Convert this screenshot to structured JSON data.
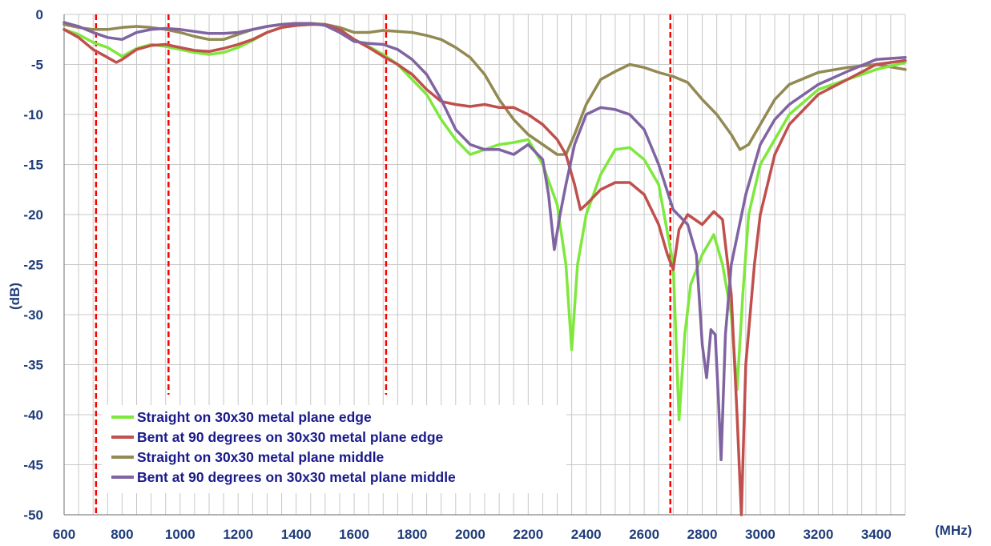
{
  "chart_data": {
    "type": "line",
    "xlabel": "(MHz)",
    "ylabel": "(dB)",
    "xlim": [
      600,
      3500
    ],
    "ylim": [
      -50,
      0
    ],
    "x_ticks": [
      600,
      800,
      1000,
      1200,
      1400,
      1600,
      1800,
      2000,
      2200,
      2400,
      2600,
      2800,
      3000,
      3200,
      3400
    ],
    "y_ticks": [
      0,
      -5,
      -10,
      -15,
      -20,
      -25,
      -30,
      -35,
      -40,
      -45,
      -50
    ],
    "grid": true,
    "legend_position": "bottom-left",
    "markers": [
      {
        "x": 710,
        "y_top": 0,
        "y_bottom": -50,
        "color": "#ff0000"
      },
      {
        "x": 960,
        "y_top": 0,
        "y_bottom": -38,
        "color": "#ff0000"
      },
      {
        "x": 1710,
        "y_top": 0,
        "y_bottom": -38,
        "color": "#ff0000"
      },
      {
        "x": 2690,
        "y_top": 0,
        "y_bottom": -50,
        "color": "#ff0000"
      }
    ],
    "series": [
      {
        "name": "Straight on 30x30 metal plane edge",
        "color": "#7ee83c",
        "points": [
          [
            600,
            -1.5
          ],
          [
            650,
            -2
          ],
          [
            700,
            -2.8
          ],
          [
            750,
            -3.3
          ],
          [
            800,
            -4.2
          ],
          [
            850,
            -3.4
          ],
          [
            900,
            -3
          ],
          [
            950,
            -3.2
          ],
          [
            1000,
            -3.5
          ],
          [
            1050,
            -3.8
          ],
          [
            1100,
            -4
          ],
          [
            1150,
            -3.8
          ],
          [
            1200,
            -3.3
          ],
          [
            1250,
            -2.6
          ],
          [
            1300,
            -1.8
          ],
          [
            1350,
            -1.3
          ],
          [
            1400,
            -1.1
          ],
          [
            1450,
            -1
          ],
          [
            1500,
            -1
          ],
          [
            1550,
            -1.5
          ],
          [
            1600,
            -2.5
          ],
          [
            1650,
            -3.2
          ],
          [
            1700,
            -4
          ],
          [
            1750,
            -5
          ],
          [
            1800,
            -6.5
          ],
          [
            1850,
            -8
          ],
          [
            1900,
            -10.5
          ],
          [
            1950,
            -12.5
          ],
          [
            2000,
            -14
          ],
          [
            2050,
            -13.5
          ],
          [
            2100,
            -13
          ],
          [
            2150,
            -12.8
          ],
          [
            2200,
            -12.5
          ],
          [
            2250,
            -15
          ],
          [
            2300,
            -19
          ],
          [
            2330,
            -25
          ],
          [
            2350,
            -33.5
          ],
          [
            2370,
            -25
          ],
          [
            2400,
            -20
          ],
          [
            2450,
            -16
          ],
          [
            2500,
            -13.5
          ],
          [
            2550,
            -13.3
          ],
          [
            2600,
            -14.5
          ],
          [
            2650,
            -17
          ],
          [
            2700,
            -25
          ],
          [
            2720,
            -40.5
          ],
          [
            2740,
            -32
          ],
          [
            2760,
            -27
          ],
          [
            2800,
            -24
          ],
          [
            2840,
            -22
          ],
          [
            2870,
            -25
          ],
          [
            2900,
            -30
          ],
          [
            2920,
            -37.5
          ],
          [
            2940,
            -28
          ],
          [
            2960,
            -20
          ],
          [
            3000,
            -15
          ],
          [
            3050,
            -12.5
          ],
          [
            3100,
            -10
          ],
          [
            3200,
            -7.5
          ],
          [
            3300,
            -6.5
          ],
          [
            3400,
            -5.5
          ],
          [
            3500,
            -4.8
          ]
        ]
      },
      {
        "name": "Bent at 90 degrees on 30x30 metal plane edge",
        "color": "#c0504d",
        "points": [
          [
            600,
            -1.5
          ],
          [
            650,
            -2.3
          ],
          [
            700,
            -3.5
          ],
          [
            750,
            -4.3
          ],
          [
            780,
            -4.8
          ],
          [
            800,
            -4.5
          ],
          [
            850,
            -3.5
          ],
          [
            900,
            -3.1
          ],
          [
            950,
            -3
          ],
          [
            1000,
            -3.3
          ],
          [
            1050,
            -3.6
          ],
          [
            1100,
            -3.7
          ],
          [
            1150,
            -3.4
          ],
          [
            1200,
            -3
          ],
          [
            1250,
            -2.5
          ],
          [
            1300,
            -1.8
          ],
          [
            1350,
            -1.3
          ],
          [
            1400,
            -1.1
          ],
          [
            1450,
            -1
          ],
          [
            1500,
            -1
          ],
          [
            1550,
            -1.5
          ],
          [
            1600,
            -2.5
          ],
          [
            1650,
            -3.3
          ],
          [
            1700,
            -4.2
          ],
          [
            1750,
            -5
          ],
          [
            1800,
            -6
          ],
          [
            1850,
            -7.5
          ],
          [
            1900,
            -8.7
          ],
          [
            1950,
            -9
          ],
          [
            2000,
            -9.2
          ],
          [
            2050,
            -9
          ],
          [
            2100,
            -9.3
          ],
          [
            2150,
            -9.3
          ],
          [
            2200,
            -10
          ],
          [
            2250,
            -11
          ],
          [
            2300,
            -12.5
          ],
          [
            2330,
            -14
          ],
          [
            2360,
            -17
          ],
          [
            2380,
            -19.5
          ],
          [
            2400,
            -19
          ],
          [
            2450,
            -17.5
          ],
          [
            2500,
            -16.8
          ],
          [
            2550,
            -16.8
          ],
          [
            2600,
            -18
          ],
          [
            2650,
            -21
          ],
          [
            2680,
            -24
          ],
          [
            2700,
            -25.5
          ],
          [
            2720,
            -21.5
          ],
          [
            2750,
            -20
          ],
          [
            2800,
            -21
          ],
          [
            2840,
            -19.7
          ],
          [
            2870,
            -20.5
          ],
          [
            2900,
            -28
          ],
          [
            2920,
            -40
          ],
          [
            2935,
            -50
          ],
          [
            2950,
            -35
          ],
          [
            2980,
            -25
          ],
          [
            3000,
            -20
          ],
          [
            3050,
            -14
          ],
          [
            3100,
            -11
          ],
          [
            3200,
            -8
          ],
          [
            3300,
            -6.5
          ],
          [
            3400,
            -5
          ],
          [
            3500,
            -4.6
          ]
        ]
      },
      {
        "name": "Straight on 30x30 metal plane middle",
        "color": "#938953",
        "points": [
          [
            600,
            -1
          ],
          [
            650,
            -1.3
          ],
          [
            700,
            -1.5
          ],
          [
            750,
            -1.5
          ],
          [
            800,
            -1.3
          ],
          [
            850,
            -1.2
          ],
          [
            900,
            -1.3
          ],
          [
            950,
            -1.5
          ],
          [
            1000,
            -1.8
          ],
          [
            1050,
            -2.2
          ],
          [
            1100,
            -2.5
          ],
          [
            1150,
            -2.5
          ],
          [
            1200,
            -2
          ],
          [
            1250,
            -1.5
          ],
          [
            1300,
            -1.2
          ],
          [
            1350,
            -1
          ],
          [
            1400,
            -0.9
          ],
          [
            1450,
            -0.9
          ],
          [
            1500,
            -1
          ],
          [
            1550,
            -1.3
          ],
          [
            1600,
            -1.8
          ],
          [
            1650,
            -1.8
          ],
          [
            1700,
            -1.6
          ],
          [
            1750,
            -1.7
          ],
          [
            1800,
            -1.8
          ],
          [
            1850,
            -2.1
          ],
          [
            1900,
            -2.5
          ],
          [
            1950,
            -3.3
          ],
          [
            2000,
            -4.3
          ],
          [
            2050,
            -6
          ],
          [
            2100,
            -8.5
          ],
          [
            2150,
            -10.5
          ],
          [
            2200,
            -12
          ],
          [
            2250,
            -13
          ],
          [
            2300,
            -14
          ],
          [
            2330,
            -14
          ],
          [
            2360,
            -12
          ],
          [
            2400,
            -9
          ],
          [
            2450,
            -6.5
          ],
          [
            2500,
            -5.7
          ],
          [
            2550,
            -5
          ],
          [
            2600,
            -5.3
          ],
          [
            2650,
            -5.8
          ],
          [
            2700,
            -6.2
          ],
          [
            2750,
            -6.8
          ],
          [
            2800,
            -8.5
          ],
          [
            2850,
            -10
          ],
          [
            2900,
            -12
          ],
          [
            2930,
            -13.5
          ],
          [
            2960,
            -13
          ],
          [
            3000,
            -11
          ],
          [
            3050,
            -8.5
          ],
          [
            3100,
            -7
          ],
          [
            3200,
            -5.8
          ],
          [
            3300,
            -5.3
          ],
          [
            3400,
            -5
          ],
          [
            3500,
            -5.5
          ]
        ]
      },
      {
        "name": "Bent at 90 degrees on 30x30 metal plane middle",
        "color": "#8064a2",
        "points": [
          [
            600,
            -0.8
          ],
          [
            650,
            -1.2
          ],
          [
            700,
            -1.8
          ],
          [
            750,
            -2.3
          ],
          [
            800,
            -2.5
          ],
          [
            850,
            -1.8
          ],
          [
            900,
            -1.5
          ],
          [
            950,
            -1.4
          ],
          [
            1000,
            -1.5
          ],
          [
            1050,
            -1.7
          ],
          [
            1100,
            -1.9
          ],
          [
            1150,
            -1.9
          ],
          [
            1200,
            -1.8
          ],
          [
            1250,
            -1.5
          ],
          [
            1300,
            -1.2
          ],
          [
            1350,
            -1
          ],
          [
            1400,
            -0.9
          ],
          [
            1450,
            -0.9
          ],
          [
            1500,
            -1.1
          ],
          [
            1550,
            -1.8
          ],
          [
            1600,
            -2.7
          ],
          [
            1650,
            -2.9
          ],
          [
            1700,
            -3
          ],
          [
            1750,
            -3.5
          ],
          [
            1800,
            -4.5
          ],
          [
            1850,
            -6
          ],
          [
            1900,
            -8.5
          ],
          [
            1950,
            -11.5
          ],
          [
            2000,
            -13
          ],
          [
            2050,
            -13.5
          ],
          [
            2100,
            -13.5
          ],
          [
            2150,
            -14
          ],
          [
            2200,
            -13
          ],
          [
            2250,
            -14.5
          ],
          [
            2270,
            -18
          ],
          [
            2290,
            -23.5
          ],
          [
            2310,
            -20
          ],
          [
            2330,
            -17
          ],
          [
            2360,
            -13
          ],
          [
            2400,
            -10
          ],
          [
            2450,
            -9.3
          ],
          [
            2500,
            -9.5
          ],
          [
            2550,
            -10
          ],
          [
            2600,
            -11.5
          ],
          [
            2650,
            -15
          ],
          [
            2700,
            -19.5
          ],
          [
            2750,
            -21
          ],
          [
            2780,
            -24
          ],
          [
            2800,
            -33
          ],
          [
            2815,
            -36.3
          ],
          [
            2830,
            -31.5
          ],
          [
            2845,
            -32
          ],
          [
            2855,
            -38
          ],
          [
            2865,
            -44.5
          ],
          [
            2880,
            -32
          ],
          [
            2900,
            -25
          ],
          [
            2950,
            -18
          ],
          [
            3000,
            -13
          ],
          [
            3050,
            -10.5
          ],
          [
            3100,
            -9
          ],
          [
            3200,
            -7
          ],
          [
            3300,
            -5.7
          ],
          [
            3400,
            -4.5
          ],
          [
            3500,
            -4.3
          ]
        ]
      }
    ]
  }
}
